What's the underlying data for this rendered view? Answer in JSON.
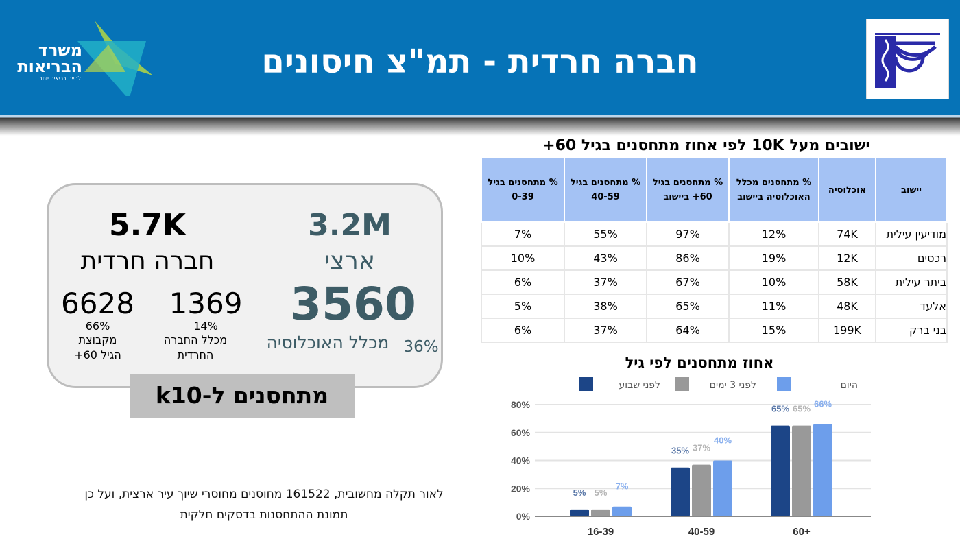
{
  "header": {
    "title": "חברה חרדית - תמ\"צ חיסונים",
    "logo_left_text": "משרד הבריאות",
    "logo_left_sub": "לחיים בריאים יותר",
    "logo_right": "ministry-emblem"
  },
  "colors": {
    "header_bg": "#0673b7",
    "table_header_bg": "#a4c2f4",
    "series_week": "#1c4587",
    "series_3days": "#999999",
    "series_today": "#6d9eeb",
    "teal_text": "#3d5c66"
  },
  "summary": {
    "national": {
      "population": "3.2M",
      "label": "ארצי",
      "vaccinated": "3560",
      "pct": "36%",
      "pct_label": "מכלל האוכלוסיה"
    },
    "haredi": {
      "population": "5.7K",
      "label": "חברה חרדית",
      "vaccinated": "1369",
      "vaccinated_pct": "14%",
      "vaccinated_label": "מכלל החברה החרדית",
      "over60": "6628",
      "over60_pct": "66%",
      "over60_label": "מקבוצת הגיל 60+"
    },
    "caption": "מתחסנים ל-k10"
  },
  "footnote": {
    "line1": "לאור תקלה מחשובית, 161522 מחוסנים מחוסרי שיוך עיר ארצית, ועל כן",
    "line2": "תמונת ההתחסנות בדסקים חלקית"
  },
  "table": {
    "title": "ישובים מעל 10K לפי אחוז מתחסנים בגיל 60+",
    "headers": [
      "יישוב",
      "אוכלוסיה",
      "% מתחסנים מכלל האוכלוסיה ביישוב",
      "% מתחסנים בגיל 60+ ביישוב",
      "% מתחסנים בגיל 40-59",
      "% מתחסנים בגיל 0-39"
    ],
    "rows": [
      [
        "מודיעין עילית",
        "74K",
        "12%",
        "97%",
        "55%",
        "7%"
      ],
      [
        "רכסים",
        "12K",
        "19%",
        "86%",
        "43%",
        "10%"
      ],
      [
        "ביתר עילית",
        "58K",
        "10%",
        "67%",
        "37%",
        "6%"
      ],
      [
        "אלעד",
        "48K",
        "11%",
        "65%",
        "38%",
        "5%"
      ],
      [
        "בני ברק",
        "199K",
        "15%",
        "64%",
        "37%",
        "6%"
      ]
    ]
  },
  "chart_data": {
    "type": "bar",
    "title": "אחוז מתחסנים לפי גיל",
    "categories": [
      "16-39",
      "40-59",
      "60+"
    ],
    "series": [
      {
        "name": "לפני שבוע",
        "color": "#1c4587",
        "values": [
          5,
          35,
          65
        ]
      },
      {
        "name": "לפני 3 ימים",
        "color": "#999999",
        "values": [
          5,
          37,
          65
        ]
      },
      {
        "name": "היום",
        "color": "#6d9eeb",
        "values": [
          7,
          40,
          66
        ]
      }
    ],
    "yticks": [
      "0%",
      "20%",
      "40%",
      "60%",
      "80%"
    ],
    "ylim": [
      0,
      80
    ],
    "grid": true,
    "legend": "top"
  }
}
